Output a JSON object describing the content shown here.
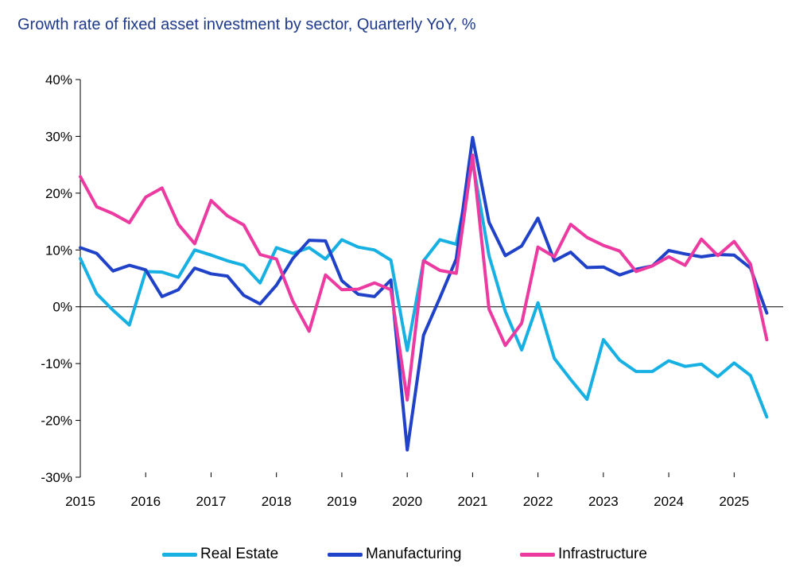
{
  "chart_data": {
    "type": "line",
    "title": "Growth rate of fixed asset investment by sector, Quarterly YoY, %",
    "xlabel": "",
    "ylabel": "",
    "ylim": [
      -30,
      40
    ],
    "y_ticks": [
      -30,
      -20,
      -10,
      0,
      10,
      20,
      30,
      40
    ],
    "y_tick_labels": [
      "-30%",
      "-20%",
      "-10%",
      "0%",
      "10%",
      "20%",
      "30%",
      "40%"
    ],
    "x_range": [
      2015,
      2025.75
    ],
    "x_tick_labels": [
      "2015",
      "2016",
      "2017",
      "2018",
      "2019",
      "2020",
      "2021",
      "2022",
      "2023",
      "2024",
      "2025"
    ],
    "grid": false,
    "legend_position": "bottom",
    "x": [
      2015.0,
      2015.25,
      2015.5,
      2015.75,
      2016.0,
      2016.25,
      2016.5,
      2016.75,
      2017.0,
      2017.25,
      2017.5,
      2017.75,
      2018.0,
      2018.25,
      2018.5,
      2018.75,
      2019.0,
      2019.25,
      2019.5,
      2019.75,
      2020.0,
      2020.25,
      2020.5,
      2020.75,
      2021.0,
      2021.25,
      2021.5,
      2021.75,
      2022.0,
      2022.25,
      2022.5,
      2022.75,
      2023.0,
      2023.25,
      2023.5,
      2023.75,
      2024.0,
      2024.25,
      2024.5,
      2024.75,
      2025.0,
      2025.25,
      2025.5
    ],
    "series": [
      {
        "name": "Real Estate",
        "color": "#17b0e2",
        "values": [
          8.5,
          2.3,
          -0.6,
          -3.2,
          6.2,
          6.1,
          5.2,
          10.0,
          9.1,
          8.1,
          7.3,
          4.2,
          10.4,
          9.4,
          10.4,
          8.4,
          11.8,
          10.5,
          10.0,
          8.2,
          -7.7,
          8.1,
          11.8,
          11.0,
          25.6,
          9.0,
          -0.8,
          -7.6,
          0.7,
          -9.1,
          -12.8,
          -16.3,
          -5.8,
          -9.4,
          -11.4,
          -11.4,
          -9.5,
          -10.5,
          -10.1,
          -12.3,
          -9.9,
          -12.1,
          -19.4
        ]
      },
      {
        "name": "Manufacturing",
        "color": "#1f42c9",
        "values": [
          10.4,
          9.4,
          6.3,
          7.3,
          6.5,
          1.8,
          3.0,
          6.8,
          5.8,
          5.4,
          2.0,
          0.5,
          3.8,
          8.5,
          11.7,
          11.6,
          4.6,
          2.2,
          1.8,
          4.7,
          -25.2,
          -5.0,
          1.6,
          8.4,
          29.8,
          14.9,
          9.0,
          10.7,
          15.6,
          8.1,
          9.6,
          6.9,
          7.0,
          5.6,
          6.6,
          7.2,
          9.9,
          9.3,
          8.8,
          9.2,
          9.1,
          6.8,
          -1.1
        ]
      },
      {
        "name": "Infrastructure",
        "color": "#ec3aa0",
        "values": [
          22.9,
          17.6,
          16.4,
          14.8,
          19.3,
          20.9,
          14.5,
          11.1,
          18.7,
          16.0,
          14.4,
          9.2,
          8.4,
          1.0,
          -4.3,
          5.6,
          3.0,
          3.1,
          4.2,
          3.0,
          -16.4,
          8.1,
          6.4,
          5.9,
          26.7,
          -0.4,
          -6.8,
          -2.9,
          10.5,
          8.8,
          14.5,
          12.2,
          10.8,
          9.8,
          6.2,
          7.2,
          8.8,
          7.3,
          11.9,
          9.0,
          11.5,
          7.5,
          -5.8
        ]
      }
    ]
  }
}
